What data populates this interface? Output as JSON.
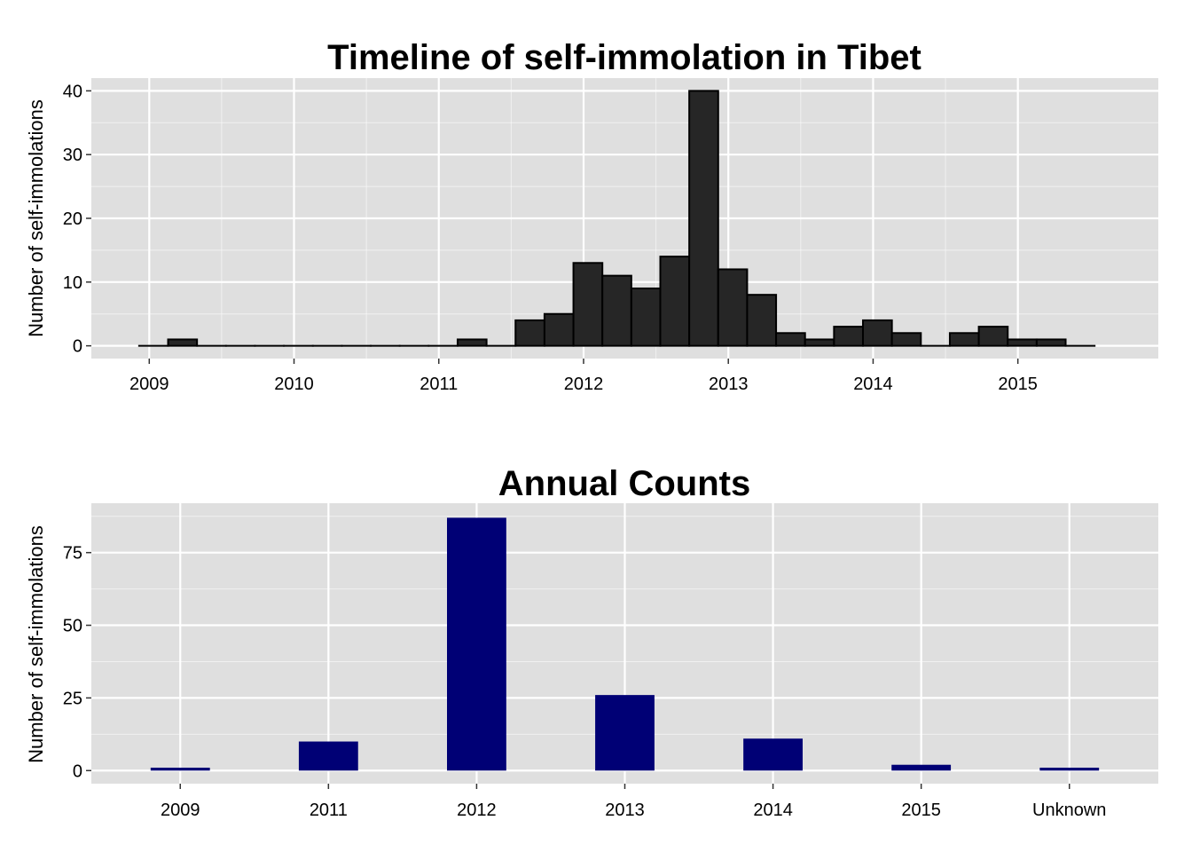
{
  "chart_data": [
    {
      "type": "bar",
      "title": "Timeline of self-immolation in Tibet",
      "xlabel": "",
      "ylabel": "Number of self-immolations",
      "x_tick_labels": [
        "2009",
        "2010",
        "2011",
        "2012",
        "2013",
        "2014",
        "2015"
      ],
      "x_ticks": [
        2009,
        2010,
        2011,
        2012,
        2013,
        2014,
        2015
      ],
      "y_ticks": [
        0,
        10,
        20,
        30,
        40
      ],
      "xlim": [
        2008.6,
        2015.97
      ],
      "ylim": [
        -2,
        42
      ],
      "grid": true,
      "bin_start": 2008.93,
      "bin_width": 0.2,
      "values": [
        0,
        1,
        0,
        0,
        0,
        0,
        0,
        0,
        0,
        0,
        0,
        1,
        0,
        4,
        5,
        13,
        11,
        9,
        14,
        40,
        12,
        8,
        2,
        1,
        3,
        4,
        2,
        0,
        2,
        3,
        1,
        1,
        0
      ],
      "fill_color": "#262626",
      "edge_color": "#000000"
    },
    {
      "type": "bar",
      "title": "Annual Counts",
      "xlabel": "",
      "ylabel": "Number of self-immolations",
      "categories": [
        "2009",
        "2011",
        "2012",
        "2013",
        "2014",
        "2015",
        "Unknown"
      ],
      "values": [
        1,
        10,
        87,
        26,
        11,
        2,
        1
      ],
      "y_ticks": [
        0,
        25,
        50,
        75
      ],
      "ylim": [
        -4.5,
        92
      ],
      "grid": true,
      "fill_color": "#000075"
    }
  ],
  "colors": {
    "panel_background": "#dfdfdf",
    "grid_line": "#ffffff"
  }
}
